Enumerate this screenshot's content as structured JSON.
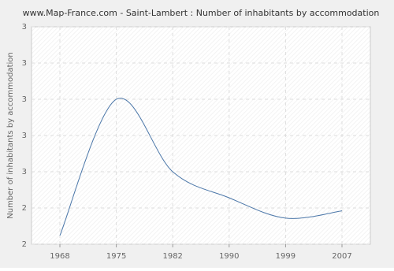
{
  "chart_data": {
    "type": "line",
    "title": "www.Map-France.com - Saint-Lambert : Number of inhabitants by accommodation",
    "y_label": "Number of inhabitants by accommodation",
    "categories": [
      "1968",
      "1975",
      "1982",
      "1990",
      "1999",
      "2007"
    ],
    "series": [
      {
        "name": "Number of inhabitants by accommodation",
        "color": "#4a76a8",
        "values": [
          2.06,
          3.0,
          2.5,
          2.32,
          2.18,
          2.23
        ]
      }
    ],
    "ylim": [
      2,
      3.5
    ],
    "yticks": [
      {
        "value": 2,
        "label": "2"
      },
      {
        "value": 2.25,
        "label": "2"
      },
      {
        "value": 2.5,
        "label": "3"
      },
      {
        "value": 2.75,
        "label": "3"
      },
      {
        "value": 3,
        "label": "3"
      },
      {
        "value": 3.25,
        "label": "3"
      },
      {
        "value": 3.5,
        "label": "3"
      }
    ],
    "grid": true
  }
}
